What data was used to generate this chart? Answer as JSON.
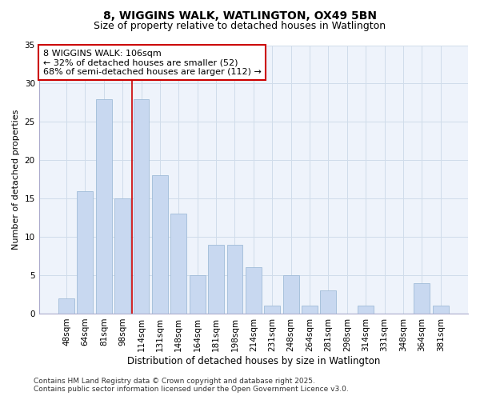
{
  "title": "8, WIGGINS WALK, WATLINGTON, OX49 5BN",
  "subtitle": "Size of property relative to detached houses in Watlington",
  "xlabel": "Distribution of detached houses by size in Watlington",
  "ylabel": "Number of detached properties",
  "categories": [
    "48sqm",
    "64sqm",
    "81sqm",
    "98sqm",
    "114sqm",
    "131sqm",
    "148sqm",
    "164sqm",
    "181sqm",
    "198sqm",
    "214sqm",
    "231sqm",
    "248sqm",
    "264sqm",
    "281sqm",
    "298sqm",
    "314sqm",
    "331sqm",
    "348sqm",
    "364sqm",
    "381sqm"
  ],
  "values": [
    2,
    16,
    28,
    15,
    28,
    18,
    13,
    5,
    9,
    9,
    6,
    1,
    5,
    1,
    3,
    0,
    1,
    0,
    0,
    4,
    1
  ],
  "bar_color": "#c8d8f0",
  "bar_edge_color": "#a0bcd8",
  "bar_width": 0.85,
  "ylim": [
    0,
    35
  ],
  "yticks": [
    0,
    5,
    10,
    15,
    20,
    25,
    30,
    35
  ],
  "red_line_x": 3.5,
  "annotation_line1": "8 WIGGINS WALK: 106sqm",
  "annotation_line2": "← 32% of detached houses are smaller (52)",
  "annotation_line3": "68% of semi-detached houses are larger (112) →",
  "annotation_box_color": "white",
  "annotation_box_edge": "#cc0000",
  "grid_color": "#d0dcea",
  "plot_bg_color": "#eef3fb",
  "fig_bg_color": "#ffffff",
  "footer_line1": "Contains HM Land Registry data © Crown copyright and database right 2025.",
  "footer_line2": "Contains public sector information licensed under the Open Government Licence v3.0.",
  "title_fontsize": 10,
  "subtitle_fontsize": 9,
  "xlabel_fontsize": 8.5,
  "ylabel_fontsize": 8,
  "tick_fontsize": 7.5,
  "annotation_fontsize": 8,
  "footer_fontsize": 6.5
}
